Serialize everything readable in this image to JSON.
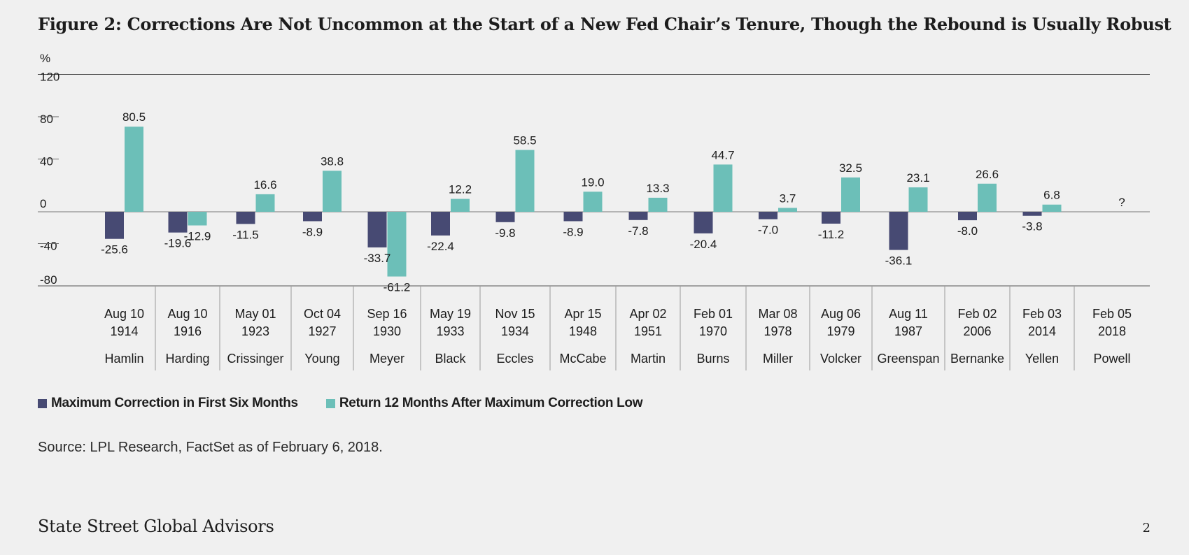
{
  "title": "Figure 2: Corrections Are Not Uncommon at the Start of a New Fed Chair’s Tenure, Though the Rebound is Usually Robust",
  "source": "Source: LPL Research, FactSet as of February 6, 2018.",
  "footer": {
    "brand": "State Street Global Advisors",
    "page": "2"
  },
  "colors": {
    "series1": "#474a73",
    "series2": "#6cbfb8"
  },
  "chart_data": {
    "type": "bar",
    "ylabel": "%",
    "ylim": [
      -80,
      120
    ],
    "yticks": [
      120,
      80,
      40,
      0,
      -40,
      -80
    ],
    "grid": false,
    "legend_position": "bottom-left",
    "categories": [
      {
        "date": "Aug 10",
        "year": "1914",
        "name": "Hamlin"
      },
      {
        "date": "Aug 10",
        "year": "1916",
        "name": "Harding"
      },
      {
        "date": "May 01",
        "year": "1923",
        "name": "Crissinger"
      },
      {
        "date": "Oct 04",
        "year": "1927",
        "name": "Young"
      },
      {
        "date": "Sep 16",
        "year": "1930",
        "name": "Meyer"
      },
      {
        "date": "May 19",
        "year": "1933",
        "name": "Black"
      },
      {
        "date": "Nov 15",
        "year": "1934",
        "name": "Eccles"
      },
      {
        "date": "Apr 15",
        "year": "1948",
        "name": "McCabe"
      },
      {
        "date": "Apr 02",
        "year": "1951",
        "name": "Martin"
      },
      {
        "date": "Feb 01",
        "year": "1970",
        "name": "Burns"
      },
      {
        "date": "Mar 08",
        "year": "1978",
        "name": "Miller"
      },
      {
        "date": "Aug 06",
        "year": "1979",
        "name": "Volcker"
      },
      {
        "date": "Aug 11",
        "year": "1987",
        "name": "Greenspan"
      },
      {
        "date": "Feb 02",
        "year": "2006",
        "name": "Bernanke"
      },
      {
        "date": "Feb 03",
        "year": "2014",
        "name": "Yellen"
      },
      {
        "date": "Feb 05",
        "year": "2018",
        "name": "Powell"
      }
    ],
    "series": [
      {
        "name": "Maximum Correction in First Six Months",
        "color": "#474a73",
        "values": [
          -25.6,
          -19.6,
          -11.5,
          -8.9,
          -33.7,
          -22.4,
          -9.8,
          -8.9,
          -7.8,
          -20.4,
          -7.0,
          -11.2,
          -36.1,
          -8.0,
          -3.8,
          null
        ],
        "labels": [
          "-25.6",
          "-19.6",
          "-11.5",
          "-8.9",
          "-33.7",
          "-22.4",
          "-9.8",
          "-8.9",
          "-7.8",
          "-20.4",
          "-7.0",
          "-11.2",
          "-36.1",
          "-8.0",
          "-3.8",
          ""
        ]
      },
      {
        "name": "Return 12 Months After Maximum Correction Low",
        "color": "#6cbfb8",
        "values": [
          80.5,
          -12.9,
          16.6,
          38.8,
          -61.2,
          12.2,
          58.5,
          19.0,
          13.3,
          44.7,
          3.7,
          32.5,
          23.1,
          26.6,
          6.8,
          null
        ],
        "labels": [
          "80.5",
          "-12.9",
          "16.6",
          "38.8",
          "-61.2",
          "12.2",
          "58.5",
          "19.0",
          "13.3",
          "44.7",
          "3.7",
          "32.5",
          "23.1",
          "26.6",
          "6.8",
          "?"
        ]
      }
    ]
  }
}
